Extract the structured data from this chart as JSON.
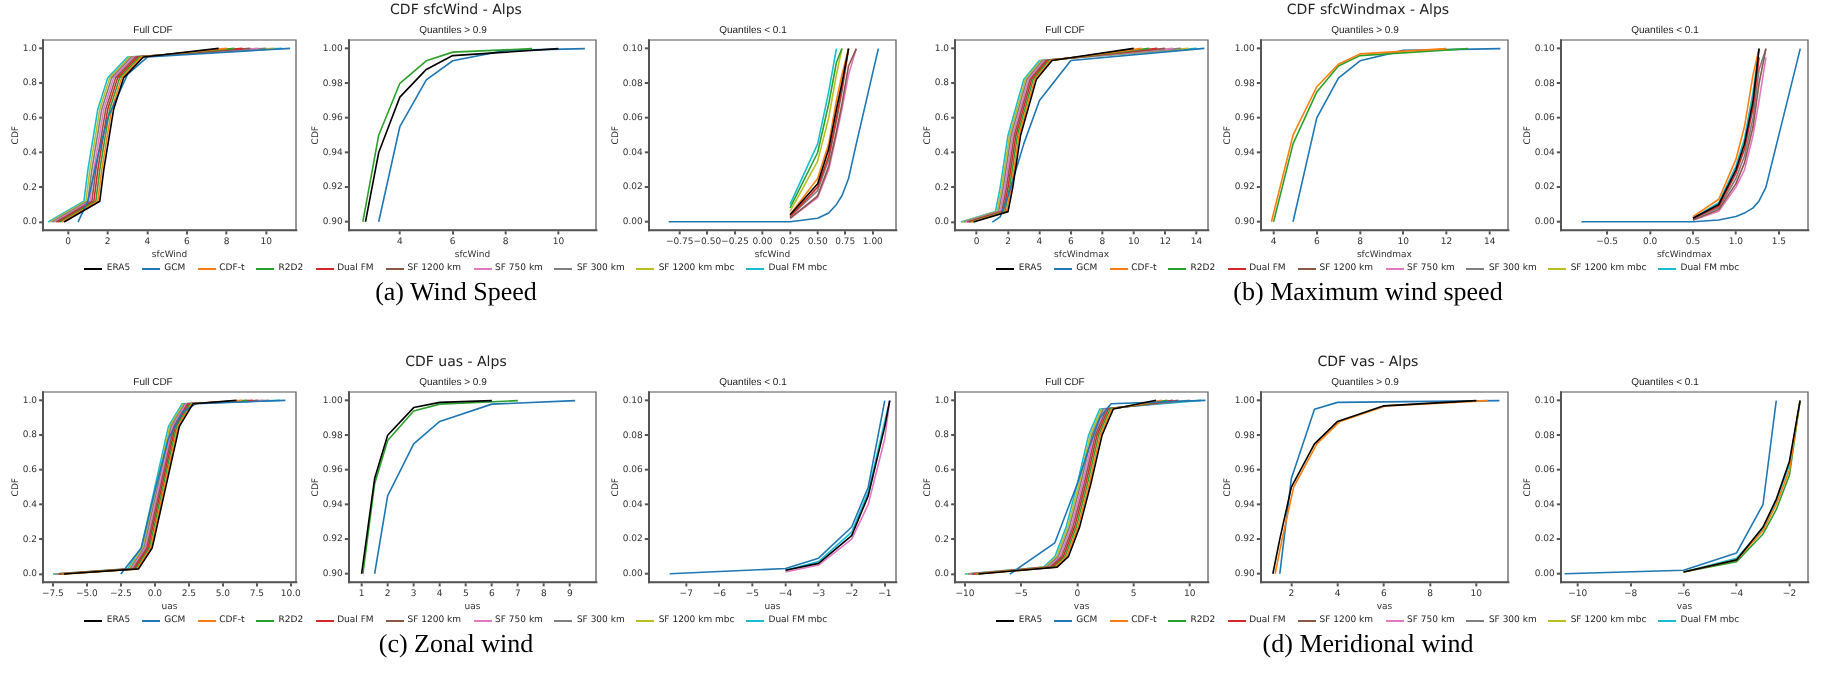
{
  "chart_data": [
    {
      "type": "line",
      "title": "Full CDF",
      "xlabel": "sfcWind",
      "ylabel": "CDF",
      "legend": "bottom",
      "xlim": [
        -1.26,
        11.5
      ],
      "xticks": [
        0,
        2,
        4,
        6,
        8,
        10
      ],
      "ylim": [
        -0.048,
        1.048
      ],
      "yticks": [
        {
          "value": 0,
          "label": "0.0"
        },
        0.2,
        0.4,
        0.6,
        0.8,
        {
          "value": 1,
          "label": "1.0"
        }
      ],
      "series": [
        {
          "name": "ERA5",
          "color": "#000000",
          "x": [
            -0.2,
            1.6,
            1.8,
            2.3,
            2.8,
            3.8,
            7.6
          ],
          "values": [
            0,
            0.12,
            0.3,
            0.65,
            0.83,
            0.95,
            1
          ]
        },
        {
          "name": "GCM",
          "color": "#1f77b4",
          "x": [
            0.5,
            1,
            1.5,
            2,
            3,
            4,
            11.2
          ],
          "values": [
            0,
            0.12,
            0.38,
            0.6,
            0.85,
            0.95,
            1
          ]
        },
        {
          "name": "CDF-t",
          "color": "#ff7f0e",
          "x": [
            -0.3,
            1.5,
            1.7,
            2.2,
            2.7,
            3.7,
            8
          ],
          "values": [
            0,
            0.12,
            0.3,
            0.65,
            0.83,
            0.95,
            1
          ]
        },
        {
          "name": "R2D2",
          "color": "#2ca02c",
          "x": [
            -0.4,
            1.4,
            1.6,
            2.1,
            2.6,
            3.6,
            8.4
          ],
          "values": [
            0,
            0.12,
            0.3,
            0.65,
            0.83,
            0.95,
            1
          ]
        },
        {
          "name": "Dual FM",
          "color": "#d62728",
          "x": [
            -0.5,
            1.3,
            1.5,
            2,
            2.5,
            3.5,
            8.8
          ],
          "values": [
            0,
            0.12,
            0.3,
            0.65,
            0.83,
            0.95,
            1
          ]
        },
        {
          "name": "SF 1200 km",
          "color": "#8c564b",
          "x": [
            -0.6,
            1.2,
            1.4,
            1.9,
            2.4,
            3.4,
            9.2
          ],
          "values": [
            0,
            0.12,
            0.3,
            0.65,
            0.83,
            0.95,
            1
          ]
        },
        {
          "name": "SF 750 km",
          "color": "#e377c2",
          "x": [
            -0.7,
            1.1,
            1.3,
            1.8,
            2.3,
            3.3,
            9.6
          ],
          "values": [
            0,
            0.12,
            0.3,
            0.65,
            0.83,
            0.95,
            1
          ]
        },
        {
          "name": "SF 300 km",
          "color": "#7f7f7f",
          "x": [
            -0.8,
            1,
            1.2,
            1.7,
            2.2,
            3.2,
            10
          ],
          "values": [
            0,
            0.12,
            0.3,
            0.65,
            0.83,
            0.95,
            1
          ]
        },
        {
          "name": "SF 1200 km mbc",
          "color": "#bcbd22",
          "x": [
            -0.9,
            0.9,
            1.1,
            1.6,
            2.1,
            3.1,
            10.4
          ],
          "values": [
            0,
            0.12,
            0.3,
            0.65,
            0.83,
            0.95,
            1
          ]
        },
        {
          "name": "Dual FM mbc",
          "color": "#17becf",
          "x": [
            -1,
            0.8,
            1,
            1.5,
            2,
            3,
            10.8
          ],
          "values": [
            0,
            0.12,
            0.3,
            0.65,
            0.83,
            0.95,
            1
          ]
        }
      ]
    },
    {
      "type": "line",
      "title": "Quantiles > 0.9",
      "xlabel": "sfcWind",
      "ylabel": "CDF",
      "annotations": [
        "CDF sfcWind - Alps",
        "(a) Wind Speed"
      ],
      "xlim": [
        2.07,
        11.42
      ],
      "xticks": [
        4,
        6,
        8,
        10
      ],
      "ylim": [
        0.895,
        1.005
      ],
      "yticks": [
        {
          "value": 0.9,
          "label": "0.90"
        },
        {
          "value": 0.92,
          "label": "0.92"
        },
        {
          "value": 0.94,
          "label": "0.94"
        },
        {
          "value": 0.96,
          "label": "0.96"
        },
        {
          "value": 0.98,
          "label": "0.98"
        },
        {
          "value": 1,
          "label": "1.00"
        }
      ],
      "series": [
        {
          "color": "#2ca02c",
          "x": [
            2.6,
            3.2,
            4,
            5,
            6,
            9
          ],
          "values": [
            0.9,
            0.95,
            0.98,
            0.993,
            0.998,
            1
          ]
        },
        {
          "color": "#000000",
          "x": [
            2.7,
            3.2,
            4,
            5,
            6,
            10
          ],
          "values": [
            0.9,
            0.94,
            0.972,
            0.988,
            0.996,
            1
          ]
        },
        {
          "color": "#1f77b4",
          "x": [
            3.2,
            4,
            5,
            6,
            8,
            11
          ],
          "values": [
            0.9,
            0.955,
            0.982,
            0.993,
            0.999,
            1
          ]
        }
      ]
    },
    {
      "type": "line",
      "title": "Quantiles < 0.1",
      "xlabel": "sfcWind",
      "ylabel": "CDF",
      "x": [
        -0.85,
        0.25,
        0.5,
        0.6,
        0.67,
        0.72,
        0.78,
        0.85,
        1.05
      ],
      "xlim": [
        -1.03,
        1.21
      ],
      "xticks": [
        {
          "value": -0.75,
          "label": "−0.75"
        },
        {
          "value": -0.5,
          "label": "−0.50"
        },
        {
          "value": -0.25,
          "label": "−0.25"
        },
        {
          "value": 0,
          "label": "0.00"
        },
        {
          "value": 0.25,
          "label": "0.25"
        },
        {
          "value": 0.5,
          "label": "0.50"
        },
        {
          "value": 0.75,
          "label": "0.75"
        },
        {
          "value": 1,
          "label": "1.00"
        }
      ],
      "ylim": [
        -0.005,
        0.105
      ],
      "yticks": [
        {
          "value": 0,
          "label": "0.00"
        },
        {
          "value": 0.02,
          "label": "0.02"
        },
        {
          "value": 0.04,
          "label": "0.04"
        },
        {
          "value": 0.06,
          "label": "0.06"
        },
        {
          "value": 0.08,
          "label": "0.08"
        },
        {
          "value": 0.1,
          "label": "0.10"
        }
      ],
      "series": [
        {
          "color": "#000000",
          "values": [
            null,
            0.004,
            0.022,
            0.042,
            0.065,
            0.08,
            0.1,
            null,
            null
          ]
        },
        {
          "color": "#1f77b4",
          "values": [
            0,
            0,
            0.002,
            0.005,
            0.01,
            0.015,
            0.025,
            0.045,
            0.1
          ]
        },
        {
          "color": "#ff7f0e",
          "values": [
            null,
            0.004,
            0.025,
            0.045,
            0.07,
            0.085,
            0.1,
            null,
            null
          ]
        },
        {
          "color": "#2ca02c",
          "values": [
            null,
            0.008,
            0.04,
            0.068,
            0.092,
            0.1,
            null,
            null,
            null
          ]
        },
        {
          "color": "#d62728",
          "values": [
            null,
            0.003,
            0.02,
            0.038,
            0.06,
            0.077,
            0.1,
            null,
            null
          ]
        },
        {
          "color": "#8c564b",
          "values": [
            null,
            0.002,
            0.015,
            0.032,
            0.052,
            0.068,
            0.09,
            0.1,
            null
          ]
        },
        {
          "color": "#e377c2",
          "values": [
            null,
            0.002,
            0.014,
            0.03,
            0.05,
            0.065,
            0.085,
            0.1,
            null
          ]
        },
        {
          "color": "#7f7f7f",
          "values": [
            null,
            0.003,
            0.018,
            0.036,
            0.058,
            0.075,
            0.1,
            null,
            null
          ]
        },
        {
          "color": "#bcbd22",
          "values": [
            null,
            0.006,
            0.035,
            0.06,
            0.085,
            0.1,
            null,
            null,
            null
          ]
        },
        {
          "color": "#17becf",
          "values": [
            null,
            0.01,
            0.045,
            0.075,
            0.1,
            null,
            null,
            null,
            null
          ]
        }
      ]
    },
    {
      "type": "line",
      "title": "Full CDF",
      "xlabel": "sfcWindmax",
      "ylabel": "CDF",
      "legend": "bottom",
      "xlim": [
        -1.37,
        14.73
      ],
      "xticks": [
        0,
        2,
        4,
        6,
        8,
        10,
        12,
        14
      ],
      "ylim": [
        -0.048,
        1.048
      ],
      "yticks": [
        {
          "value": 0,
          "label": "0.0"
        },
        0.2,
        0.4,
        0.6,
        0.8,
        {
          "value": 1,
          "label": "1.0"
        }
      ],
      "series": [
        {
          "name": "ERA5",
          "color": "#000000",
          "x": [
            -0.2,
            2,
            2.3,
            2.8,
            3.8,
            4.8,
            10
          ],
          "values": [
            0,
            0.06,
            0.2,
            0.5,
            0.82,
            0.93,
            1
          ]
        },
        {
          "name": "GCM",
          "color": "#1f77b4",
          "x": [
            1,
            1.5,
            2,
            3,
            4,
            6,
            14.5
          ],
          "values": [
            0,
            0.03,
            0.15,
            0.45,
            0.7,
            0.93,
            1
          ]
        },
        {
          "name": "CDF-t",
          "color": "#ff7f0e",
          "x": [
            -0.3,
            1.9,
            2.2,
            2.7,
            3.7,
            4.7,
            10.5
          ],
          "values": [
            0,
            0.06,
            0.2,
            0.5,
            0.82,
            0.93,
            1
          ]
        },
        {
          "name": "R2D2",
          "color": "#2ca02c",
          "x": [
            -0.4,
            1.8,
            2.1,
            2.6,
            3.6,
            4.6,
            11
          ],
          "values": [
            0,
            0.06,
            0.2,
            0.5,
            0.82,
            0.93,
            1
          ]
        },
        {
          "name": "Dual FM",
          "color": "#d62728",
          "x": [
            -0.5,
            1.7,
            2,
            2.5,
            3.5,
            4.5,
            11.5
          ],
          "values": [
            0,
            0.06,
            0.2,
            0.5,
            0.82,
            0.93,
            1
          ]
        },
        {
          "name": "SF 1200 km",
          "color": "#8c564b",
          "x": [
            -0.6,
            1.6,
            1.9,
            2.4,
            3.4,
            4.4,
            12
          ],
          "values": [
            0,
            0.06,
            0.2,
            0.5,
            0.82,
            0.93,
            1
          ]
        },
        {
          "name": "SF 750 km",
          "color": "#e377c2",
          "x": [
            -0.7,
            1.5,
            1.8,
            2.3,
            3.3,
            4.3,
            12.5
          ],
          "values": [
            0,
            0.06,
            0.2,
            0.5,
            0.82,
            0.93,
            1
          ]
        },
        {
          "name": "SF 300 km",
          "color": "#7f7f7f",
          "x": [
            -0.8,
            1.4,
            1.7,
            2.2,
            3.2,
            4.2,
            13
          ],
          "values": [
            0,
            0.06,
            0.2,
            0.5,
            0.82,
            0.93,
            1
          ]
        },
        {
          "name": "SF 1200 km mbc",
          "color": "#bcbd22",
          "x": [
            -0.9,
            1.3,
            1.6,
            2.1,
            3.1,
            4.1,
            13.5
          ],
          "values": [
            0,
            0.06,
            0.2,
            0.5,
            0.82,
            0.93,
            1
          ]
        },
        {
          "name": "Dual FM mbc",
          "color": "#17becf",
          "x": [
            -1,
            1.2,
            1.5,
            2,
            3,
            4,
            14
          ],
          "values": [
            0,
            0.06,
            0.2,
            0.5,
            0.82,
            0.93,
            1
          ]
        }
      ]
    },
    {
      "type": "line",
      "title": "Quantiles > 0.9",
      "xlabel": "sfcWindmax",
      "ylabel": "CDF",
      "annotations": [
        "CDF sfcWindmax - Alps",
        "(b) Maximum wind speed"
      ],
      "xlim": [
        3.41,
        14.85
      ],
      "xticks": [
        4,
        6,
        8,
        10,
        12,
        14
      ],
      "ylim": [
        0.895,
        1.005
      ],
      "yticks": [
        {
          "value": 0.9,
          "label": "0.90"
        },
        {
          "value": 0.92,
          "label": "0.92"
        },
        {
          "value": 0.94,
          "label": "0.94"
        },
        {
          "value": 0.96,
          "label": "0.96"
        },
        {
          "value": 0.98,
          "label": "0.98"
        },
        {
          "value": 1,
          "label": "1.00"
        }
      ],
      "series": [
        {
          "color": "#ff7f0e",
          "x": [
            3.9,
            4.9,
            6,
            7,
            8,
            12
          ],
          "values": [
            0.9,
            0.95,
            0.978,
            0.991,
            0.997,
            1
          ]
        },
        {
          "color": "#2ca02c",
          "x": [
            4,
            4.9,
            6,
            7,
            8,
            13
          ],
          "values": [
            0.9,
            0.945,
            0.975,
            0.99,
            0.996,
            1
          ]
        },
        {
          "color": "#1f77b4",
          "x": [
            4.9,
            6,
            7,
            8,
            10,
            14.5
          ],
          "values": [
            0.9,
            0.96,
            0.983,
            0.993,
            0.999,
            1
          ]
        }
      ]
    },
    {
      "type": "line",
      "title": "Quantiles < 0.1",
      "xlabel": "sfcWindmax",
      "ylabel": "CDF",
      "x": [
        -0.8,
        0.5,
        0.8,
        1,
        1.1,
        1.2,
        1.27,
        1.35,
        1.75
      ],
      "xlim": [
        -1.04,
        1.84
      ],
      "xticks": [
        {
          "value": -0.5,
          "label": "−0.5"
        },
        {
          "value": 0,
          "label": "0.0"
        },
        0.5,
        {
          "value": 1,
          "label": "1.0"
        },
        1.5
      ],
      "ylim": [
        -0.005,
        0.105
      ],
      "yticks": [
        {
          "value": 0,
          "label": "0.00"
        },
        {
          "value": 0.02,
          "label": "0.02"
        },
        {
          "value": 0.04,
          "label": "0.04"
        },
        {
          "value": 0.06,
          "label": "0.06"
        },
        {
          "value": 0.08,
          "label": "0.08"
        },
        {
          "value": 0.1,
          "label": "0.10"
        }
      ],
      "series": [
        {
          "color": "#000000",
          "values": [
            null,
            0.002,
            0.01,
            0.03,
            0.045,
            0.07,
            0.1,
            null,
            null
          ]
        },
        {
          "color": "#1f77b4",
          "values": [
            0,
            0,
            0.001,
            0.003,
            0.005,
            0.008,
            0.012,
            0.02,
            0.1
          ]
        },
        {
          "color": "#ff7f0e",
          "values": [
            null,
            0.003,
            0.013,
            0.036,
            0.055,
            0.085,
            0.1,
            null,
            null
          ]
        },
        {
          "color": "#d62728",
          "values": [
            null,
            0.002,
            0.009,
            0.028,
            0.042,
            0.066,
            0.095,
            null,
            null
          ]
        },
        {
          "color": "#8c564b",
          "values": [
            null,
            0.001,
            0.007,
            0.022,
            0.034,
            0.055,
            0.08,
            0.1,
            null
          ]
        },
        {
          "color": "#e377c2",
          "values": [
            null,
            0.001,
            0.006,
            0.02,
            0.03,
            0.05,
            0.07,
            0.095,
            null
          ]
        },
        {
          "color": "#7f7f7f",
          "values": [
            null,
            0.002,
            0.008,
            0.025,
            0.038,
            0.06,
            0.088,
            0.1,
            null
          ]
        },
        {
          "color": "#17becf",
          "values": [
            null,
            0.002,
            0.011,
            0.032,
            0.048,
            0.075,
            0.1,
            null,
            null
          ]
        }
      ]
    },
    {
      "type": "line",
      "title": "Full CDF",
      "xlabel": "uas",
      "ylabel": "CDF",
      "legend": "bottom",
      "xlim": [
        -8.22,
        10.38
      ],
      "xticks": [
        {
          "value": -7.5,
          "label": "−7.5"
        },
        {
          "value": -5,
          "label": "−5.0"
        },
        {
          "value": -2.5,
          "label": "−2.5"
        },
        {
          "value": 0,
          "label": "0.0"
        },
        2.5,
        {
          "value": 5,
          "label": "5.0"
        },
        7.5,
        {
          "value": 10,
          "label": "10.0"
        }
      ],
      "ylim": [
        -0.048,
        1.048
      ],
      "yticks": [
        {
          "value": 0,
          "label": "0.0"
        },
        0.2,
        0.4,
        0.6,
        0.8,
        {
          "value": 1,
          "label": "1.0"
        }
      ],
      "series": [
        {
          "name": "ERA5",
          "color": "#000000",
          "x": [
            -6.7,
            -1.2,
            -0.2,
            0.8,
            1.8,
            2.8,
            6
          ],
          "values": [
            0,
            0.03,
            0.15,
            0.5,
            0.85,
            0.98,
            1
          ]
        },
        {
          "name": "GCM",
          "color": "#1f77b4",
          "x": [
            -2.5,
            -1,
            0,
            1,
            2,
            3,
            9.6
          ],
          "values": [
            0,
            0.15,
            0.48,
            0.78,
            0.93,
            0.98,
            1
          ]
        },
        {
          "name": "CDF-t",
          "color": "#ff7f0e",
          "x": [
            -6.8,
            -1.3,
            -0.3,
            0.7,
            1.7,
            2.7,
            6.4
          ],
          "values": [
            0,
            0.03,
            0.15,
            0.5,
            0.85,
            0.98,
            1
          ]
        },
        {
          "name": "R2D2",
          "color": "#2ca02c",
          "x": [
            -6.9,
            -1.4,
            -0.4,
            0.6,
            1.6,
            2.6,
            6.8
          ],
          "values": [
            0,
            0.03,
            0.15,
            0.5,
            0.85,
            0.98,
            1
          ]
        },
        {
          "name": "Dual FM",
          "color": "#d62728",
          "x": [
            -7,
            -1.5,
            -0.5,
            0.5,
            1.5,
            2.5,
            7.2
          ],
          "values": [
            0,
            0.03,
            0.15,
            0.5,
            0.85,
            0.98,
            1
          ]
        },
        {
          "name": "SF 1200 km",
          "color": "#8c564b",
          "x": [
            -7.1,
            -1.6,
            -0.6,
            0.4,
            1.4,
            2.4,
            7.6
          ],
          "values": [
            0,
            0.03,
            0.15,
            0.5,
            0.85,
            0.98,
            1
          ]
        },
        {
          "name": "SF 750 km",
          "color": "#e377c2",
          "x": [
            -7.2,
            -1.7,
            -0.7,
            0.3,
            1.3,
            2.3,
            8
          ],
          "values": [
            0,
            0.03,
            0.15,
            0.5,
            0.85,
            0.98,
            1
          ]
        },
        {
          "name": "SF 300 km",
          "color": "#7f7f7f",
          "x": [
            -7.3,
            -1.8,
            -0.8,
            0.2,
            1.2,
            2.2,
            8.4
          ],
          "values": [
            0,
            0.03,
            0.15,
            0.5,
            0.85,
            0.98,
            1
          ]
        },
        {
          "name": "SF 1200 km mbc",
          "color": "#bcbd22",
          "x": [
            -7.4,
            -1.9,
            -0.9,
            0.1,
            1.1,
            2.1
          ],
          "values": [
            0,
            0.03,
            0.15,
            0.5,
            0.85,
            0.98
          ]
        },
        {
          "name": "Dual FM mbc",
          "color": "#17becf",
          "x": [
            -7.5,
            -2,
            -1,
            0,
            1,
            2,
            9.2
          ],
          "values": [
            0,
            0.03,
            0.15,
            0.5,
            0.85,
            0.98,
            1
          ]
        }
      ]
    },
    {
      "type": "line",
      "title": "Quantiles > 0.9",
      "xlabel": "uas",
      "ylabel": "CDF",
      "annotations": [
        "CDF uas - Alps",
        "(c) Zonal wind"
      ],
      "xlim": [
        0.51,
        10
      ],
      "xticks": [
        1,
        2,
        3,
        4,
        5,
        6,
        7,
        8,
        9
      ],
      "ylim": [
        0.895,
        1.005
      ],
      "yticks": [
        {
          "value": 0.9,
          "label": "0.90"
        },
        {
          "value": 0.92,
          "label": "0.92"
        },
        {
          "value": 0.94,
          "label": "0.94"
        },
        {
          "value": 0.96,
          "label": "0.96"
        },
        {
          "value": 0.98,
          "label": "0.98"
        },
        {
          "value": 1,
          "label": "1.00"
        }
      ],
      "series": [
        {
          "color": "#000000",
          "x": [
            1,
            1.5,
            2,
            3,
            4,
            6
          ],
          "values": [
            0.9,
            0.955,
            0.98,
            0.996,
            0.999,
            1
          ]
        },
        {
          "color": "#2ca02c",
          "x": [
            1.05,
            1.5,
            2,
            3,
            4,
            7
          ],
          "values": [
            0.9,
            0.952,
            0.977,
            0.994,
            0.998,
            1
          ]
        },
        {
          "color": "#1f77b4",
          "x": [
            1.5,
            2,
            3,
            4,
            6,
            9.2
          ],
          "values": [
            0.9,
            0.945,
            0.975,
            0.988,
            0.998,
            1
          ]
        }
      ]
    },
    {
      "type": "line",
      "title": "Quantiles < 0.1",
      "xlabel": "uas",
      "ylabel": "CDF",
      "x": [
        -7.5,
        -4,
        -3,
        -2,
        -1.5,
        -1,
        -0.85
      ],
      "xlim": [
        -8.13,
        -0.66
      ],
      "xticks": [
        {
          "value": -7,
          "label": "−7"
        },
        {
          "value": -6,
          "label": "−6"
        },
        {
          "value": -5,
          "label": "−5"
        },
        {
          "value": -4,
          "label": "−4"
        },
        {
          "value": -3,
          "label": "−3"
        },
        {
          "value": -2,
          "label": "−2"
        },
        {
          "value": -1,
          "label": "−1"
        }
      ],
      "ylim": [
        -0.005,
        0.105
      ],
      "yticks": [
        {
          "value": 0,
          "label": "0.00"
        },
        {
          "value": 0.02,
          "label": "0.02"
        },
        {
          "value": 0.04,
          "label": "0.04"
        },
        {
          "value": 0.06,
          "label": "0.06"
        },
        {
          "value": 0.08,
          "label": "0.08"
        },
        {
          "value": 0.1,
          "label": "0.10"
        }
      ],
      "series": [
        {
          "color": "#000000",
          "values": [
            null,
            0.002,
            0.006,
            0.022,
            0.045,
            0.085,
            0.1
          ]
        },
        {
          "color": "#1f77b4",
          "values": [
            0,
            0.003,
            0.009,
            0.027,
            0.05,
            0.1,
            null
          ]
        },
        {
          "color": "#e377c2",
          "values": [
            null,
            0.001,
            0.005,
            0.02,
            0.04,
            0.078,
            0.1
          ]
        },
        {
          "color": "#17becf",
          "values": [
            null,
            0.002,
            0.007,
            0.024,
            0.047,
            0.088,
            0.1
          ]
        }
      ]
    },
    {
      "type": "line",
      "title": "Full CDF",
      "xlabel": "vas",
      "ylabel": "CDF",
      "legend": "bottom",
      "xlim": [
        -10.87,
        11.62
      ],
      "xticks": [
        {
          "value": -10,
          "label": "−10"
        },
        {
          "value": -5,
          "label": "−5"
        },
        0,
        5,
        10
      ],
      "ylim": [
        -0.048,
        1.048
      ],
      "yticks": [
        {
          "value": 0,
          "label": "0.0"
        },
        0.2,
        0.4,
        0.6,
        0.8,
        {
          "value": 1,
          "label": "1.0"
        }
      ],
      "series": [
        {
          "name": "ERA5",
          "color": "#000000",
          "x": [
            -8.8,
            -1.8,
            -0.8,
            0.2,
            1.2,
            2.2,
            3.2,
            7
          ],
          "values": [
            0,
            0.04,
            0.1,
            0.27,
            0.52,
            0.8,
            0.95,
            1
          ]
        },
        {
          "name": "GCM",
          "color": "#1f77b4",
          "x": [
            -6,
            -2,
            -1,
            0,
            1,
            2,
            3,
            11.4
          ],
          "values": [
            0,
            0.18,
            0.35,
            0.52,
            0.72,
            0.9,
            0.98,
            1
          ]
        },
        {
          "name": "CDF-t",
          "color": "#ff7f0e",
          "x": [
            -8.95,
            -1.95,
            -0.95,
            0.05,
            1.05,
            2.05,
            3.05,
            7.5
          ],
          "values": [
            0,
            0.04,
            0.1,
            0.27,
            0.52,
            0.8,
            0.95,
            1
          ]
        },
        {
          "name": "R2D2",
          "color": "#2ca02c",
          "x": [
            -9.1,
            -2.1,
            -1.1,
            -0.1,
            0.9,
            1.9,
            2.9,
            8
          ],
          "values": [
            0,
            0.04,
            0.1,
            0.27,
            0.52,
            0.8,
            0.95,
            1
          ]
        },
        {
          "name": "Dual FM",
          "color": "#d62728",
          "x": [
            -9.25,
            -2.25,
            -1.25,
            -0.25,
            0.75,
            1.75,
            2.75,
            8.5
          ],
          "values": [
            0,
            0.04,
            0.1,
            0.27,
            0.52,
            0.8,
            0.95,
            1
          ]
        },
        {
          "name": "SF 1200 km",
          "color": "#8c564b",
          "x": [
            -9.4,
            -2.4,
            -1.4,
            -0.4,
            0.6,
            1.6,
            2.6,
            9
          ],
          "values": [
            0,
            0.04,
            0.1,
            0.27,
            0.52,
            0.8,
            0.95,
            1
          ]
        },
        {
          "name": "SF 750 km",
          "color": "#e377c2",
          "x": [
            -9.55,
            -2.55,
            -1.55,
            -0.55,
            0.45,
            1.45,
            2.45
          ],
          "values": [
            0,
            0.04,
            0.1,
            0.27,
            0.52,
            0.8,
            0.95
          ]
        },
        {
          "name": "SF 300 km",
          "color": "#7f7f7f",
          "x": [
            -9.7,
            -2.7,
            -1.7,
            -0.7,
            0.3,
            1.3,
            2.3,
            10
          ],
          "values": [
            0,
            0.04,
            0.1,
            0.27,
            0.52,
            0.8,
            0.95,
            1
          ]
        },
        {
          "name": "SF 1200 km mbc",
          "color": "#bcbd22",
          "x": [
            -9.85,
            -2.85,
            -1.85,
            -0.85,
            0.15,
            1.15,
            2.15
          ],
          "values": [
            0,
            0.04,
            0.1,
            0.27,
            0.52,
            0.8,
            0.95
          ]
        },
        {
          "name": "Dual FM mbc",
          "color": "#17becf",
          "x": [
            -10,
            -3,
            -2,
            -1,
            0,
            1,
            2,
            11
          ],
          "values": [
            0,
            0.04,
            0.1,
            0.27,
            0.52,
            0.8,
            0.95,
            1
          ]
        }
      ]
    },
    {
      "type": "line",
      "title": "Quantiles > 0.9",
      "xlabel": "vas",
      "ylabel": "CDF",
      "annotations": [
        "CDF vas - Alps",
        "(d) Meridional wind"
      ],
      "xlim": [
        0.68,
        11.37
      ],
      "xticks": [
        2,
        4,
        6,
        8,
        10
      ],
      "ylim": [
        0.895,
        1.005
      ],
      "yticks": [
        {
          "value": 0.9,
          "label": "0.90"
        },
        {
          "value": 0.92,
          "label": "0.92"
        },
        {
          "value": 0.94,
          "label": "0.94"
        },
        {
          "value": 0.96,
          "label": "0.96"
        },
        {
          "value": 0.98,
          "label": "0.98"
        },
        {
          "value": 1,
          "label": "1.00"
        }
      ],
      "series": [
        {
          "color": "#000000",
          "x": [
            1.2,
            1.5,
            2,
            3,
            4,
            6,
            10
          ],
          "values": [
            0.9,
            0.92,
            0.95,
            0.975,
            0.988,
            0.997,
            1
          ]
        },
        {
          "color": "#ff7f0e",
          "x": [
            1.3,
            1.6,
            2.1,
            3.1,
            4.1,
            6.1,
            10.5
          ],
          "values": [
            0.9,
            0.92,
            0.95,
            0.975,
            0.988,
            0.997,
            1
          ]
        },
        {
          "color": "#1f77b4",
          "x": [
            1.5,
            2,
            3,
            4,
            11
          ],
          "values": [
            0.9,
            0.955,
            0.995,
            0.999,
            1
          ]
        }
      ]
    },
    {
      "type": "line",
      "title": "Quantiles < 0.1",
      "xlabel": "vas",
      "ylabel": "CDF",
      "x": [
        -10.5,
        -6,
        -4,
        -3,
        -2.5,
        -2,
        -1.6
      ],
      "xlim": [
        -10.64,
        -1.3
      ],
      "xticks": [
        {
          "value": -10,
          "label": "−10"
        },
        {
          "value": -8,
          "label": "−8"
        },
        {
          "value": -6,
          "label": "−6"
        },
        {
          "value": -4,
          "label": "−4"
        },
        {
          "value": -2,
          "label": "−2"
        }
      ],
      "ylim": [
        -0.005,
        0.105
      ],
      "yticks": [
        {
          "value": 0,
          "label": "0.00"
        },
        {
          "value": 0.02,
          "label": "0.02"
        },
        {
          "value": 0.04,
          "label": "0.04"
        },
        {
          "value": 0.06,
          "label": "0.06"
        },
        {
          "value": 0.08,
          "label": "0.08"
        },
        {
          "value": 0.1,
          "label": "0.10"
        }
      ],
      "series": [
        {
          "color": "#000000",
          "values": [
            null,
            0.001,
            0.008,
            0.027,
            0.043,
            0.065,
            0.1
          ]
        },
        {
          "color": "#1f77b4",
          "values": [
            0,
            0.002,
            0.012,
            0.04,
            0.1,
            null,
            null
          ]
        },
        {
          "color": "#ff7f0e",
          "values": [
            null,
            0.001,
            0.008,
            0.025,
            0.04,
            0.06,
            0.1
          ]
        },
        {
          "color": "#2ca02c",
          "values": [
            null,
            0.001,
            0.007,
            0.023,
            0.037,
            0.057,
            0.1
          ]
        },
        {
          "color": "#17becf",
          "values": [
            null,
            0.001,
            0.009,
            0.026,
            0.042,
            0.063,
            0.1
          ]
        }
      ]
    }
  ]
}
